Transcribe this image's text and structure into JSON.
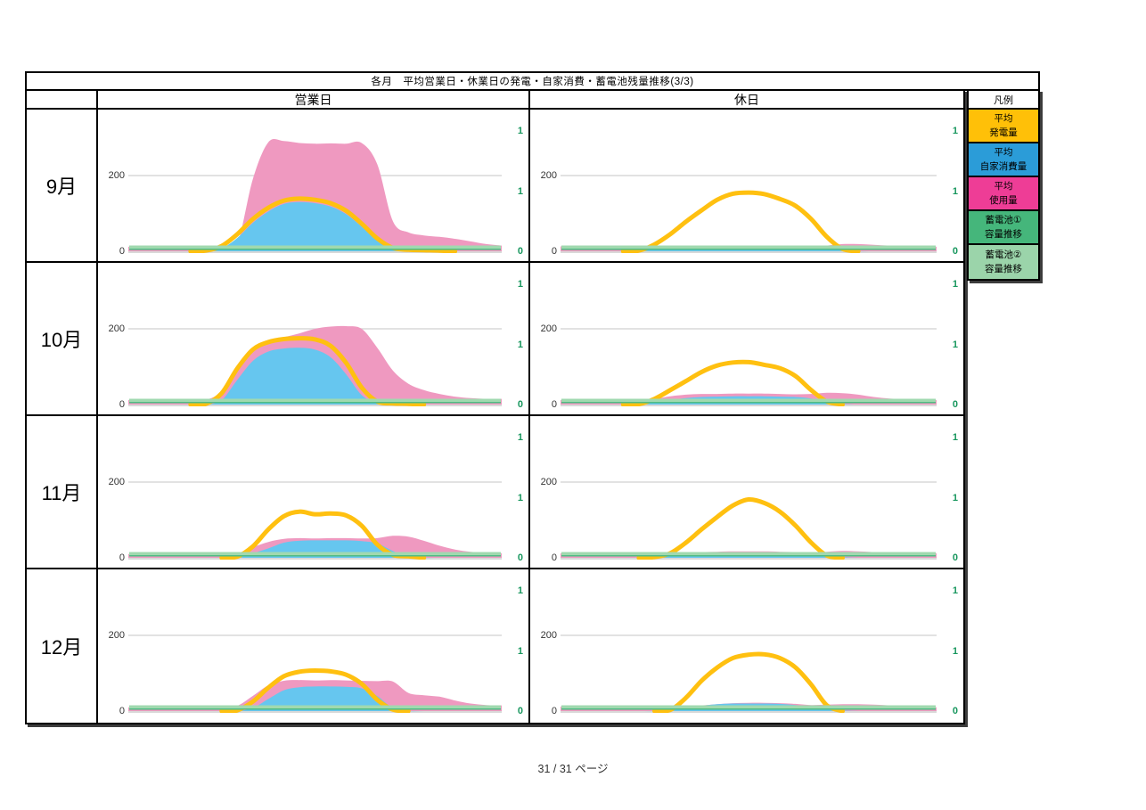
{
  "page": {
    "footer": "31 / 31 ページ"
  },
  "table": {
    "title": "各月　平均営業日・休業日の発電・自家消費・蓄電池残量推移(3/3)",
    "columns": {
      "business": "営業日",
      "holiday": "休日"
    },
    "rows": [
      {
        "month": "9月"
      },
      {
        "month": "10月"
      },
      {
        "month": "11月"
      },
      {
        "month": "12月"
      }
    ],
    "legend": {
      "header": "凡例",
      "items": [
        {
          "line1": "平均",
          "line2": "発電量",
          "color": "#FFC008"
        },
        {
          "line1": "平均",
          "line2": "自家消費量",
          "color": "#2B9CD8"
        },
        {
          "line1": "平均",
          "line2": "使用量",
          "color": "#EE3D96"
        },
        {
          "line1": "蓄電池①",
          "line2": "容量推移",
          "color": "#45B67B"
        },
        {
          "line1": "蓄電池②",
          "line2": "容量推移",
          "color": "#9BD4AA"
        }
      ]
    }
  },
  "chart_data": {
    "type": "area",
    "x": "time of day, 25 samples per chart, x-axis tick labels not shown",
    "grid": "single gray gridline at left-axis 200 plus gray baseline at 0",
    "left_axis": {
      "tick_labels": [
        "200",
        "0"
      ],
      "tick_values": [
        200,
        0
      ],
      "approx_max": 345,
      "label_color": "#333333"
    },
    "right_axis": {
      "tick_labels": [
        "1",
        "1",
        "0"
      ],
      "tick_values": [
        1,
        0.5,
        0
      ],
      "range": [
        0,
        1
      ],
      "label_color": "#18975E"
    },
    "series_style": {
      "usage": {
        "label": "平均使用量",
        "type": "area",
        "color": "#EF99C0",
        "axis": "left"
      },
      "self_consumption": {
        "label": "平均自家消費量",
        "type": "area",
        "color": "#66C6EF",
        "axis": "left"
      },
      "generation": {
        "label": "平均発電量",
        "type": "line",
        "color": "#FFC010",
        "axis": "left"
      },
      "battery1": {
        "label": "蓄電池①容量推移",
        "type": "line",
        "color": "#4FBC83",
        "axis": "right",
        "constant": 0.02
      },
      "battery2": {
        "label": "蓄電池②容量推移",
        "type": "line",
        "color": "#A0D9AF",
        "axis": "right",
        "constant": 0.035
      }
    },
    "charts": [
      {
        "month": "9月",
        "column": "営業日",
        "usage": [
          12,
          12,
          12,
          12,
          12,
          12,
          12,
          20,
          190,
          288,
          291,
          286,
          284,
          285,
          284,
          286,
          230,
          80,
          50,
          42,
          38,
          33,
          26,
          19,
          15
        ],
        "self_consumption": [
          0,
          0,
          0,
          0,
          0,
          0,
          8,
          35,
          75,
          105,
          125,
          130,
          127,
          118,
          98,
          65,
          28,
          5,
          0,
          0,
          0,
          0,
          0,
          0,
          0
        ],
        "generation": [
          0,
          0,
          0,
          0,
          0,
          2,
          14,
          45,
          85,
          115,
          134,
          139,
          136,
          127,
          107,
          73,
          34,
          9,
          4,
          3,
          2,
          0,
          0,
          0,
          0
        ]
      },
      {
        "month": "9月",
        "column": "休日",
        "usage": [
          13,
          13,
          13,
          13,
          13,
          13,
          13,
          13,
          14,
          15,
          15,
          15,
          15,
          15,
          14,
          14,
          13,
          15,
          19,
          19,
          17,
          15,
          14,
          13,
          12
        ],
        "self_consumption": [
          0,
          0,
          0,
          0,
          0,
          2,
          8,
          11,
          13,
          13,
          14,
          14,
          14,
          13,
          13,
          12,
          10,
          7,
          3,
          0,
          0,
          0,
          0,
          0,
          0
        ],
        "generation": [
          0,
          0,
          0,
          0,
          0,
          2,
          18,
          45,
          78,
          108,
          136,
          152,
          155,
          151,
          138,
          120,
          85,
          38,
          6,
          0,
          0,
          0,
          0,
          0,
          0
        ]
      },
      {
        "month": "10月",
        "column": "営業日",
        "usage": [
          12,
          12,
          12,
          12,
          12,
          13,
          35,
          100,
          150,
          170,
          178,
          188,
          200,
          206,
          207,
          200,
          150,
          90,
          55,
          38,
          28,
          21,
          17,
          15,
          15
        ],
        "self_consumption": [
          0,
          0,
          0,
          0,
          0,
          0,
          12,
          65,
          115,
          140,
          148,
          150,
          145,
          125,
          80,
          25,
          3,
          0,
          0,
          0,
          0,
          0,
          0,
          0,
          0
        ],
        "generation": [
          0,
          0,
          0,
          0,
          0,
          2,
          30,
          95,
          145,
          165,
          173,
          175,
          172,
          155,
          110,
          45,
          8,
          3,
          2,
          0,
          0,
          0,
          0,
          0,
          0
        ]
      },
      {
        "month": "10月",
        "column": "休日",
        "usage": [
          12,
          12,
          12,
          12,
          12,
          13,
          15,
          22,
          26,
          28,
          28,
          29,
          29,
          29,
          28,
          27,
          28,
          31,
          30,
          26,
          20,
          16,
          14,
          13,
          12
        ],
        "self_consumption": [
          0,
          0,
          0,
          0,
          0,
          1,
          6,
          12,
          17,
          20,
          21,
          22,
          22,
          22,
          21,
          20,
          16,
          8,
          2,
          0,
          0,
          0,
          0,
          0,
          0
        ],
        "generation": [
          0,
          0,
          0,
          0,
          0,
          1,
          15,
          38,
          62,
          86,
          103,
          111,
          112,
          105,
          96,
          75,
          38,
          8,
          0,
          0,
          0,
          0,
          0,
          0,
          0
        ]
      },
      {
        "month": "11月",
        "column": "営業日",
        "usage": [
          10,
          10,
          10,
          10,
          10,
          10,
          10,
          12,
          28,
          42,
          50,
          52,
          51,
          52,
          52,
          51,
          52,
          58,
          56,
          45,
          32,
          22,
          16,
          13,
          12
        ],
        "self_consumption": [
          0,
          0,
          0,
          0,
          0,
          0,
          0,
          2,
          12,
          25,
          40,
          45,
          46,
          46,
          46,
          44,
          38,
          18,
          3,
          0,
          0,
          0,
          0,
          0,
          0
        ],
        "generation": [
          0,
          0,
          0,
          0,
          0,
          0,
          0,
          3,
          30,
          75,
          110,
          122,
          115,
          117,
          112,
          85,
          35,
          8,
          4,
          0,
          0,
          0,
          0,
          0,
          0
        ]
      },
      {
        "month": "11月",
        "column": "休日",
        "usage": [
          12,
          12,
          12,
          12,
          12,
          12,
          12,
          13,
          13,
          15,
          16,
          17,
          17,
          17,
          16,
          15,
          14,
          16,
          18,
          17,
          15,
          14,
          13,
          12,
          12
        ],
        "self_consumption": [
          0,
          0,
          0,
          0,
          0,
          0,
          1,
          5,
          8,
          12,
          14,
          15,
          15,
          15,
          14,
          13,
          11,
          6,
          2,
          0,
          0,
          0,
          0,
          0,
          0
        ],
        "generation": [
          0,
          0,
          0,
          0,
          0,
          0,
          2,
          12,
          40,
          75,
          108,
          138,
          154,
          145,
          122,
          85,
          40,
          6,
          0,
          0,
          0,
          0,
          0,
          0,
          0
        ]
      },
      {
        "month": "12月",
        "column": "営業日",
        "usage": [
          10,
          10,
          10,
          10,
          10,
          10,
          10,
          14,
          40,
          68,
          80,
          82,
          81,
          82,
          81,
          80,
          79,
          78,
          48,
          42,
          38,
          28,
          20,
          16,
          15
        ],
        "self_consumption": [
          0,
          0,
          0,
          0,
          0,
          0,
          0,
          0,
          8,
          32,
          55,
          63,
          65,
          65,
          64,
          60,
          40,
          8,
          0,
          0,
          0,
          0,
          0,
          0,
          0
        ],
        "generation": [
          0,
          0,
          0,
          0,
          0,
          0,
          0,
          2,
          25,
          62,
          92,
          104,
          107,
          105,
          96,
          72,
          30,
          4,
          0,
          0,
          0,
          0,
          0,
          0,
          0
        ]
      },
      {
        "month": "12月",
        "column": "休日",
        "usage": [
          12,
          12,
          12,
          13,
          12,
          12,
          12,
          12,
          13,
          15,
          18,
          21,
          22,
          22,
          21,
          19,
          16,
          17,
          18,
          18,
          17,
          15,
          13,
          11,
          10
        ],
        "self_consumption": [
          0,
          0,
          0,
          0,
          0,
          0,
          0,
          3,
          8,
          14,
          18,
          20,
          20,
          20,
          19,
          16,
          12,
          6,
          2,
          0,
          0,
          0,
          0,
          0,
          0
        ],
        "generation": [
          0,
          0,
          0,
          0,
          0,
          0,
          0,
          3,
          35,
          80,
          115,
          140,
          149,
          150,
          140,
          115,
          70,
          15,
          0,
          0,
          0,
          0,
          0,
          0,
          0
        ]
      }
    ]
  }
}
